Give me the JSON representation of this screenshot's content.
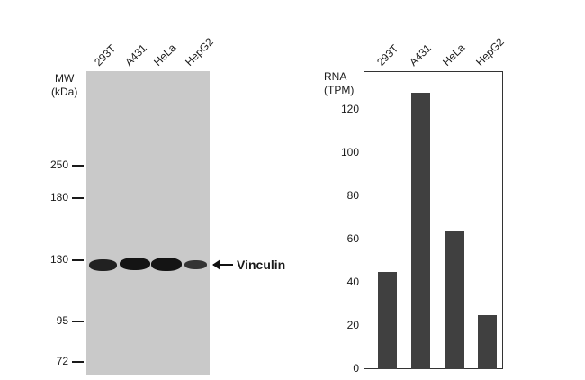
{
  "chart_data": [
    {
      "type": "western-blot",
      "lanes": [
        "293T",
        "A431",
        "HeLa",
        "HepG2"
      ],
      "mw_title": [
        "MW",
        "(kDa)"
      ],
      "mw_markers": [
        "250",
        "180",
        "130",
        "95",
        "72"
      ],
      "target_label": "Vinculin",
      "band_intensity": [
        0.85,
        1.0,
        1.0,
        0.6
      ]
    },
    {
      "type": "bar",
      "categories": [
        "293T",
        "A431",
        "HeLa",
        "HepG2"
      ],
      "values": [
        45,
        128,
        64,
        25
      ],
      "ylabel": [
        "RNA",
        "(TPM)"
      ],
      "ylim": [
        0,
        138
      ],
      "yticks": [
        "0",
        "20",
        "40",
        "60",
        "80",
        "100",
        "120"
      ],
      "bar_color": "#404040",
      "grid": false
    }
  ]
}
